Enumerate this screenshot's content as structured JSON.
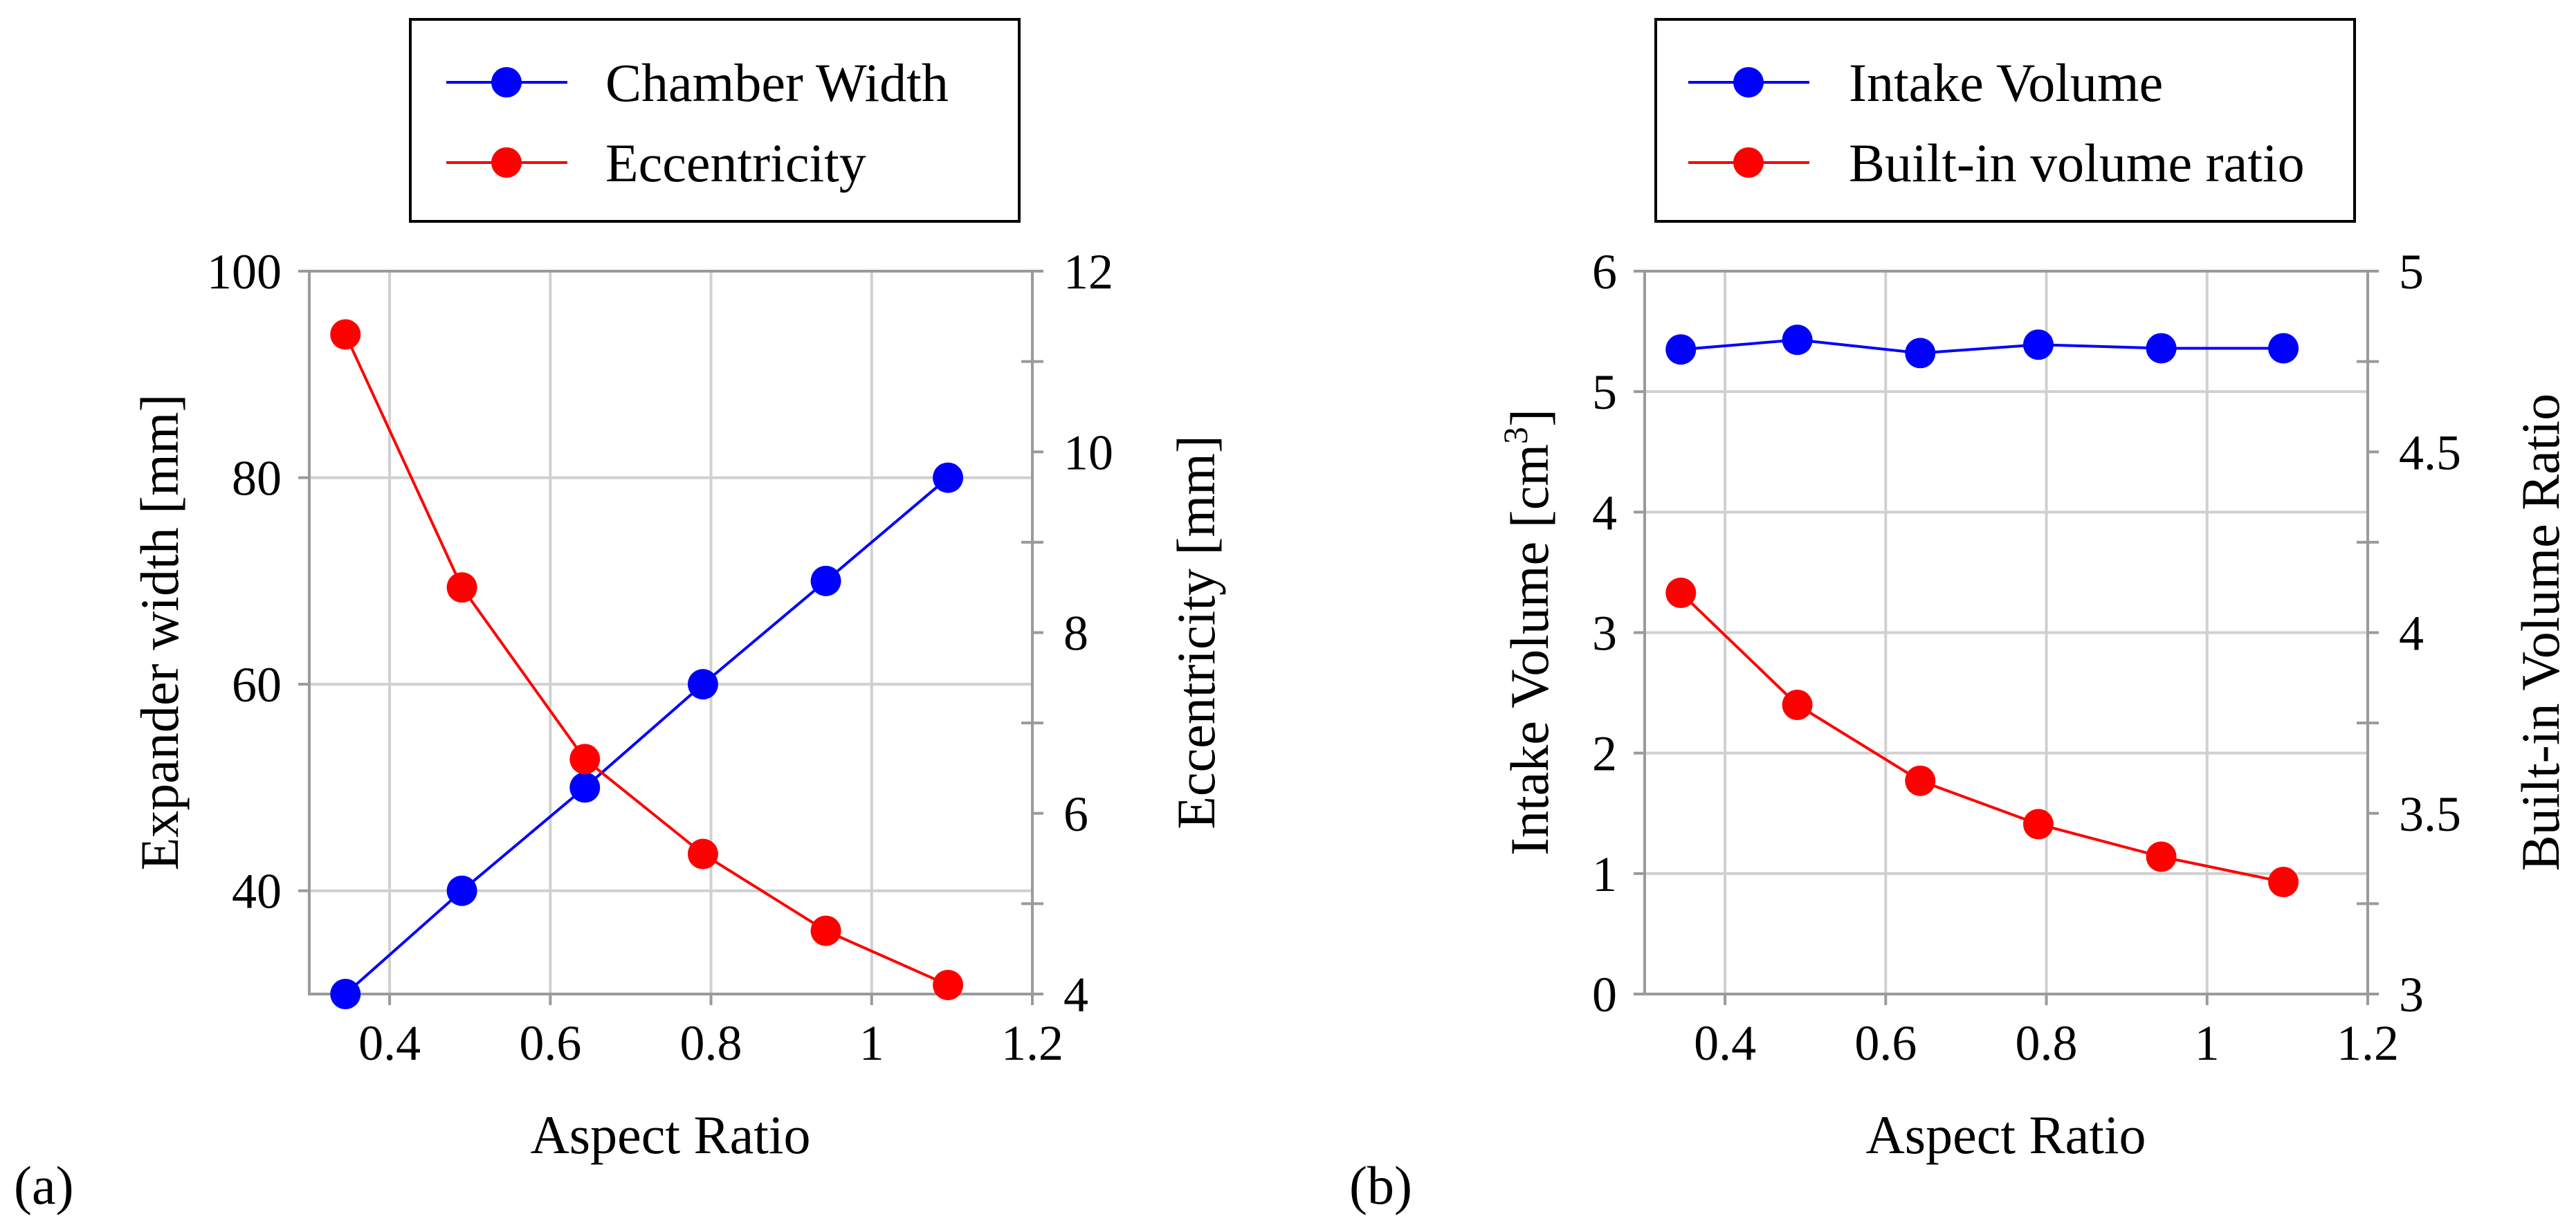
{
  "chart_data": [
    {
      "type": "line",
      "panel_label": "(a)",
      "title": "",
      "xlabel": "Aspect Ratio",
      "ylabel": "Expander width [mm]",
      "y2label": "Eccentricity [mm]",
      "xlim": [
        0.3,
        1.2
      ],
      "ylim": [
        30,
        100
      ],
      "y2lim": [
        4,
        12
      ],
      "x_ticks": [
        "0.4",
        "0.6",
        "0.8",
        "1",
        "1.2"
      ],
      "y_ticks": [
        "40",
        "60",
        "80",
        "100"
      ],
      "y2_ticks": [
        "4",
        "6",
        "8",
        "10",
        "12"
      ],
      "x": [
        0.345,
        0.49,
        0.643,
        0.79,
        0.943,
        1.095
      ],
      "series": [
        {
          "name": "Chamber Width",
          "axis": "left",
          "color": "#0000ff",
          "values": [
            30,
            40,
            50,
            60,
            70,
            80
          ]
        },
        {
          "name": "Eccentricity",
          "axis": "right",
          "color": "#ff0000",
          "values": [
            11.3,
            8.5,
            6.6,
            5.55,
            4.7,
            4.1
          ]
        }
      ],
      "legend": {
        "placement": "top-center",
        "entries": [
          "Chamber Width",
          "Eccentricity"
        ]
      }
    },
    {
      "type": "line",
      "panel_label": "(b)",
      "title": "",
      "xlabel": "Aspect Ratio",
      "ylabel": "Intake Volume [cm",
      "ylabel_superscript": "3",
      "ylabel_suffix": "]",
      "y2label": "Built-in Volume Ratio",
      "xlim": [
        0.3,
        1.2
      ],
      "ylim": [
        0,
        6
      ],
      "y2lim": [
        3,
        5
      ],
      "x_ticks": [
        "0.4",
        "0.6",
        "0.8",
        "1",
        "1.2"
      ],
      "y_ticks": [
        "0",
        "1",
        "2",
        "3",
        "4",
        "5",
        "6"
      ],
      "y2_ticks": [
        "3",
        "3.5",
        "4",
        "4.5",
        "5"
      ],
      "x": [
        0.345,
        0.49,
        0.643,
        0.79,
        0.943,
        1.095
      ],
      "series": [
        {
          "name": "Intake Volume",
          "axis": "left",
          "color": "#0000ff",
          "values": [
            5.35,
            5.43,
            5.32,
            5.39,
            5.36,
            5.36
          ]
        },
        {
          "name": "Built-in volume ratio",
          "axis": "right",
          "color": "#ff0000",
          "values": [
            4.11,
            3.8,
            3.59,
            3.47,
            3.38,
            3.31
          ]
        }
      ],
      "legend": {
        "placement": "top-center",
        "entries": [
          "Intake Volume",
          "Built-in volume ratio"
        ]
      }
    }
  ]
}
